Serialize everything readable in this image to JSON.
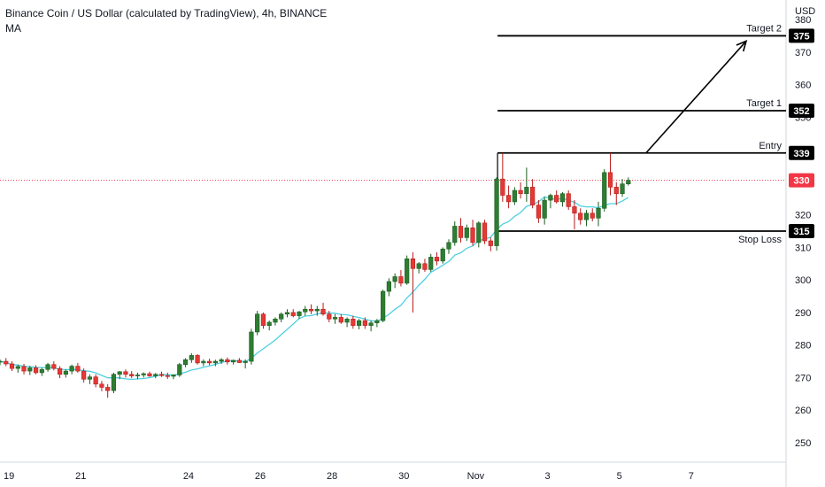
{
  "header": {
    "title": "Binance Coin / US Dollar (calculated by TradingView), 4h, BINANCE",
    "indicator": "MA"
  },
  "axis": {
    "currency": "USD",
    "price_ticks": [
      250,
      260,
      270,
      280,
      290,
      300,
      310,
      320,
      330,
      340,
      350,
      360,
      370,
      380
    ],
    "date_ticks": [
      {
        "label": "19",
        "bar": 1.5
      },
      {
        "label": "21",
        "bar": 13.5
      },
      {
        "label": "24",
        "bar": 31.5
      },
      {
        "label": "26",
        "bar": 43.5
      },
      {
        "label": "28",
        "bar": 55.5
      },
      {
        "label": "30",
        "bar": 67.5
      },
      {
        "label": "Nov",
        "bar": 79.5
      },
      {
        "label": "3",
        "bar": 91.5
      },
      {
        "label": "5",
        "bar": 103.5
      },
      {
        "label": "7",
        "bar": 115.5
      }
    ]
  },
  "colors": {
    "up": "#26a69a",
    "up_body": "#2e7d32",
    "down": "#e53935",
    "ma": "#4dd0e1",
    "level_line": "#000000",
    "current_price_tag": "#f23645",
    "level_tag": "#000000"
  },
  "levels": [
    {
      "name": "Target 2",
      "value": 375,
      "tag": "375"
    },
    {
      "name": "Target 1",
      "value": 352,
      "tag": "352"
    },
    {
      "name": "Entry",
      "value": 339,
      "tag": "339"
    },
    {
      "name": "Stop Loss",
      "value": 315,
      "tag": "315"
    }
  ],
  "current_price": {
    "value": 330.6,
    "tag": "330"
  },
  "chart_data": {
    "type": "candlestick",
    "timeframe": "4h",
    "symbol": "BNBUSD",
    "y_range": [
      244,
      386
    ],
    "series_ma": "MA",
    "candles": [
      [
        274.8,
        275.6,
        273.8,
        275.0
      ],
      [
        275.0,
        276.0,
        273.5,
        274.2
      ],
      [
        274.2,
        275.0,
        272.0,
        272.8
      ],
      [
        272.8,
        274.0,
        271.5,
        273.4
      ],
      [
        273.4,
        274.2,
        271.0,
        272.0
      ],
      [
        272.0,
        273.6,
        270.8,
        273.0
      ],
      [
        273.0,
        273.8,
        271.0,
        271.5
      ],
      [
        271.5,
        273.0,
        270.5,
        272.5
      ],
      [
        272.5,
        274.5,
        271.8,
        274.0
      ],
      [
        274.0,
        275.0,
        272.2,
        272.8
      ],
      [
        272.8,
        273.5,
        269.8,
        271.0
      ],
      [
        271.0,
        272.5,
        270.0,
        272.0
      ],
      [
        272.0,
        274.0,
        271.0,
        273.5
      ],
      [
        273.5,
        274.5,
        271.5,
        272.0
      ],
      [
        272.0,
        272.8,
        268.5,
        269.5
      ],
      [
        269.5,
        271.0,
        268.0,
        270.2
      ],
      [
        270.2,
        271.0,
        267.0,
        268.0
      ],
      [
        268.0,
        269.0,
        265.8,
        267.0
      ],
      [
        267.0,
        268.0,
        263.8,
        266.0
      ],
      [
        266.0,
        271.5,
        265.2,
        271.0
      ],
      [
        271.0,
        272.0,
        269.5,
        271.8
      ],
      [
        271.8,
        272.5,
        270.0,
        271.0
      ],
      [
        271.0,
        272.0,
        269.8,
        270.5
      ],
      [
        270.5,
        271.5,
        269.5,
        270.8
      ],
      [
        270.8,
        271.6,
        270.0,
        271.2
      ],
      [
        271.2,
        271.8,
        270.2,
        270.5
      ],
      [
        270.5,
        271.4,
        269.8,
        271.0
      ],
      [
        271.0,
        271.8,
        270.2,
        270.6
      ],
      [
        270.6,
        271.5,
        269.6,
        270.4
      ],
      [
        270.4,
        271.0,
        269.5,
        270.8
      ],
      [
        270.8,
        274.5,
        270.2,
        274.0
      ],
      [
        274.0,
        276.0,
        273.2,
        275.5
      ],
      [
        275.5,
        277.5,
        274.5,
        276.8
      ],
      [
        276.8,
        277.2,
        274.0,
        274.5
      ],
      [
        274.5,
        275.6,
        273.5,
        275.0
      ],
      [
        275.0,
        275.8,
        273.8,
        274.5
      ],
      [
        274.5,
        275.5,
        273.5,
        275.0
      ],
      [
        275.0,
        276.0,
        274.2,
        275.5
      ],
      [
        275.5,
        276.2,
        274.0,
        274.8
      ],
      [
        274.8,
        275.5,
        274.0,
        275.3
      ],
      [
        275.3,
        276.0,
        274.5,
        274.6
      ],
      [
        274.6,
        275.6,
        272.8,
        275.0
      ],
      [
        275.0,
        285.0,
        274.0,
        284.0
      ],
      [
        284.0,
        290.5,
        283.0,
        289.5
      ],
      [
        289.5,
        290.0,
        285.0,
        286.0
      ],
      [
        286.0,
        287.5,
        284.5,
        287.0
      ],
      [
        287.0,
        288.5,
        286.0,
        288.0
      ],
      [
        288.0,
        290.0,
        287.0,
        289.5
      ],
      [
        289.5,
        291.0,
        288.5,
        290.0
      ],
      [
        290.0,
        291.0,
        288.5,
        289.0
      ],
      [
        289.0,
        290.5,
        288.0,
        290.2
      ],
      [
        290.2,
        292.0,
        289.0,
        291.0
      ],
      [
        291.0,
        292.5,
        289.5,
        290.5
      ],
      [
        290.5,
        292.0,
        289.0,
        291.0
      ],
      [
        291.0,
        293.0,
        289.0,
        289.5
      ],
      [
        289.5,
        290.5,
        287.0,
        288.0
      ],
      [
        288.0,
        289.5,
        286.5,
        288.5
      ],
      [
        288.5,
        289.5,
        286.5,
        287.0
      ],
      [
        287.0,
        288.5,
        285.5,
        288.0
      ],
      [
        288.0,
        289.0,
        285.0,
        286.0
      ],
      [
        286.0,
        288.0,
        284.8,
        287.5
      ],
      [
        287.5,
        288.5,
        285.0,
        286.0
      ],
      [
        286.0,
        287.5,
        284.2,
        286.8
      ],
      [
        286.8,
        288.0,
        285.5,
        287.5
      ],
      [
        287.5,
        297.0,
        287.0,
        296.5
      ],
      [
        296.5,
        300.5,
        295.0,
        299.5
      ],
      [
        299.5,
        302.0,
        297.5,
        301.0
      ],
      [
        301.0,
        303.0,
        298.0,
        299.0
      ],
      [
        299.0,
        307.5,
        298.5,
        306.5
      ],
      [
        306.5,
        308.5,
        290.0,
        303.5
      ],
      [
        303.5,
        305.5,
        302.0,
        305.0
      ],
      [
        305.0,
        306.5,
        302.5,
        303.2
      ],
      [
        303.2,
        308.0,
        302.5,
        307.0
      ],
      [
        307.0,
        308.5,
        304.5,
        305.8
      ],
      [
        305.8,
        310.0,
        305.0,
        309.5
      ],
      [
        309.5,
        312.5,
        308.0,
        311.5
      ],
      [
        311.5,
        318.0,
        310.5,
        316.5
      ],
      [
        316.5,
        319.0,
        311.5,
        313.0
      ],
      [
        313.0,
        317.0,
        312.0,
        316.0
      ],
      [
        316.0,
        318.5,
        310.5,
        311.5
      ],
      [
        311.5,
        318.0,
        310.0,
        317.5
      ],
      [
        317.5,
        318.5,
        311.0,
        312.0
      ],
      [
        312.0,
        313.0,
        308.8,
        310.5
      ],
      [
        310.5,
        331.5,
        309.0,
        331.0
      ],
      [
        331.0,
        339.0,
        324.0,
        326.0
      ],
      [
        326.0,
        329.0,
        322.0,
        324.0
      ],
      [
        324.0,
        328.5,
        323.0,
        327.5
      ],
      [
        327.5,
        330.0,
        325.0,
        326.5
      ],
      [
        326.5,
        334.5,
        324.0,
        328.5
      ],
      [
        328.5,
        331.0,
        322.0,
        323.0
      ],
      [
        323.0,
        324.5,
        317.5,
        319.0
      ],
      [
        319.0,
        325.5,
        317.0,
        324.5
      ],
      [
        324.5,
        326.5,
        322.0,
        326.0
      ],
      [
        326.0,
        327.5,
        323.5,
        324.0
      ],
      [
        324.0,
        327.0,
        322.5,
        326.5
      ],
      [
        326.5,
        327.5,
        321.5,
        322.5
      ],
      [
        322.5,
        324.5,
        315.5,
        320.5
      ],
      [
        320.5,
        322.0,
        317.0,
        318.5
      ],
      [
        318.5,
        321.5,
        316.5,
        320.5
      ],
      [
        320.5,
        322.0,
        318.0,
        319.0
      ],
      [
        319.0,
        324.0,
        316.5,
        322.0
      ],
      [
        322.0,
        334.0,
        321.0,
        333.0
      ],
      [
        333.0,
        339.0,
        326.0,
        328.5
      ],
      [
        328.5,
        330.0,
        323.0,
        326.5
      ],
      [
        326.5,
        331.0,
        325.5,
        329.5
      ],
      [
        329.5,
        331.5,
        329.0,
        330.6
      ]
    ]
  }
}
